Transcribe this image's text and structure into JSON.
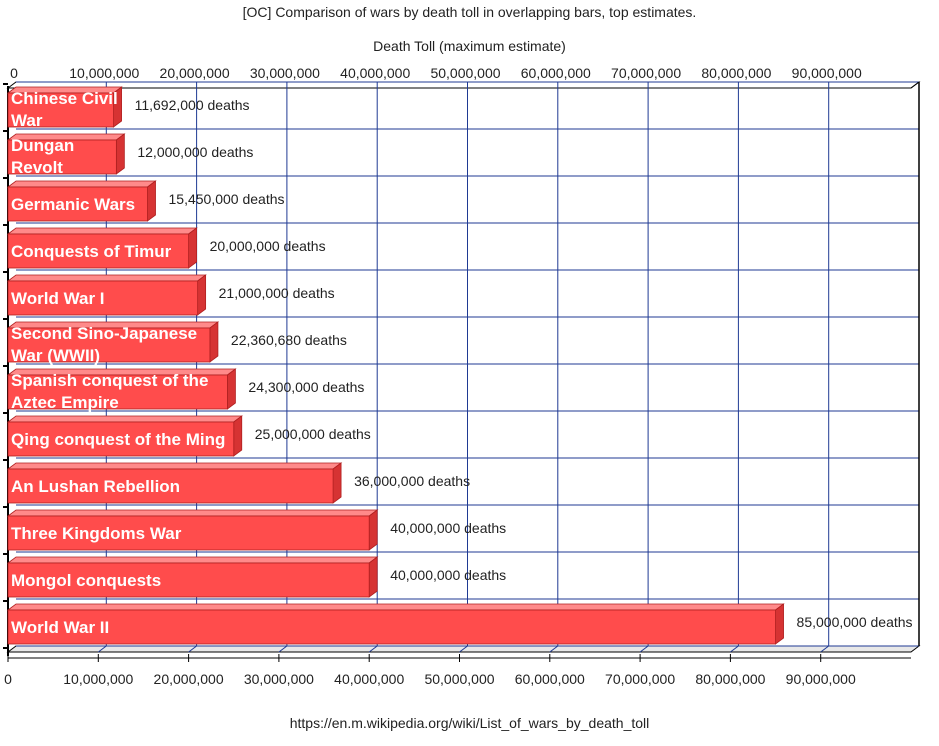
{
  "page": {
    "title": "[OC] Comparison of wars by death toll in overlapping bars, top estimates.",
    "source": "https://en.m.wikipedia.org/wiki/List_of_wars_by_death_toll"
  },
  "chart_data": {
    "type": "bar",
    "orientation": "horizontal",
    "title": "[OC] Comparison of wars by death toll in overlapping bars, top estimates.",
    "xlabel": "Death Toll (maximum estimate)",
    "ylabel": "",
    "xlim": [
      0,
      100000000
    ],
    "xticks": [
      0,
      10000000,
      20000000,
      30000000,
      40000000,
      50000000,
      60000000,
      70000000,
      80000000,
      90000000
    ],
    "xtick_labels": [
      "0",
      "10,000,000",
      "20,000,000",
      "30,000,000",
      "40,000,000",
      "50,000,000",
      "60,000,000",
      "70,000,000",
      "80,000,000",
      "90,000,000"
    ],
    "grid": true,
    "bar_color": "#ff4c4c",
    "value_suffix": "deaths",
    "categories": [
      [
        "Chinese Civil",
        "War"
      ],
      [
        "Dungan",
        "Revolt"
      ],
      [
        "Germanic Wars"
      ],
      [
        "Conquests of Timur"
      ],
      [
        "World War I"
      ],
      [
        "Second Sino-Japanese",
        "War (WWII)"
      ],
      [
        "Spanish conquest of the",
        "Aztec Empire"
      ],
      [
        "Qing conquest of the Ming"
      ],
      [
        "An Lushan Rebellion"
      ],
      [
        "Three Kingdoms War"
      ],
      [
        "Mongol conquests"
      ],
      [
        "World War II"
      ]
    ],
    "values": [
      11692000,
      12000000,
      15450000,
      20000000,
      21000000,
      22360680,
      24300000,
      25000000,
      36000000,
      40000000,
      40000000,
      85000000
    ],
    "value_labels": [
      "11,692,000",
      "12,000,000",
      "15,450,000",
      "20,000,000",
      "21,000,000",
      "22,360,680",
      "24,300,000",
      "25,000,000",
      "36,000,000",
      "40,000,000",
      "40,000,000",
      "85,000,000"
    ]
  }
}
